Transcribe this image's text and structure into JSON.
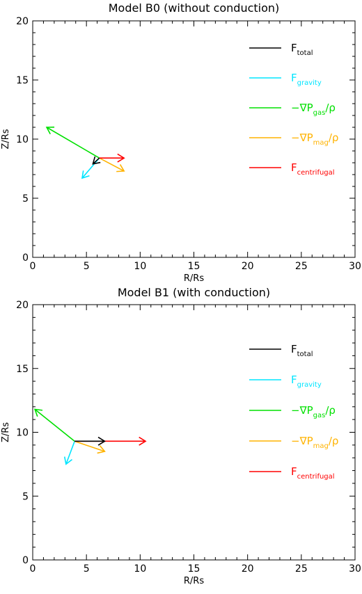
{
  "chart_data": [
    {
      "type": "vector-field",
      "title": "Model B0 (without conduction)",
      "xlabel": "R/Rs",
      "ylabel": "Z/Rs",
      "xlim": [
        0,
        30
      ],
      "ylim": [
        0,
        20
      ],
      "xticks": [
        "0",
        "5",
        "10",
        "15",
        "20",
        "25",
        "30"
      ],
      "yticks": [
        "0",
        "5",
        "10",
        "15",
        "20"
      ],
      "legend_position": "top-right",
      "origin": [
        6.2,
        8.4
      ],
      "series": [
        {
          "name": "F",
          "sub": "total",
          "prefix": "",
          "suffix": "",
          "color": "#000000",
          "vector": [
            -0.6,
            -0.5
          ]
        },
        {
          "name": "F",
          "sub": "gravity",
          "prefix": "",
          "suffix": "",
          "color": "#00e5ff",
          "vector": [
            -1.6,
            -1.7
          ]
        },
        {
          "name": "P",
          "sub": "gas",
          "prefix": "−∇",
          "suffix": "/ρ",
          "color": "#00e000",
          "vector": [
            -4.9,
            2.6
          ]
        },
        {
          "name": "P",
          "sub": "mag",
          "prefix": "−∇",
          "suffix": "/ρ",
          "color": "#ffb300",
          "vector": [
            2.3,
            -1.1
          ]
        },
        {
          "name": "F",
          "sub": "centrifugal",
          "prefix": "",
          "suffix": "",
          "color": "#ff0000",
          "vector": [
            2.3,
            0.0
          ]
        }
      ]
    },
    {
      "type": "vector-field",
      "title": "Model B1 (with conduction)",
      "xlabel": "R/Rs",
      "ylabel": "Z/Rs",
      "xlim": [
        0,
        30
      ],
      "ylim": [
        0,
        20
      ],
      "xticks": [
        "0",
        "5",
        "10",
        "15",
        "20",
        "25",
        "30"
      ],
      "yticks": [
        "0",
        "5",
        "10",
        "15",
        "20"
      ],
      "legend_position": "top-right",
      "origin": [
        3.9,
        9.3
      ],
      "series": [
        {
          "name": "F",
          "sub": "total",
          "prefix": "",
          "suffix": "",
          "color": "#000000",
          "vector": [
            2.8,
            0.0
          ]
        },
        {
          "name": "F",
          "sub": "gravity",
          "prefix": "",
          "suffix": "",
          "color": "#00e5ff",
          "vector": [
            -0.8,
            -1.8
          ]
        },
        {
          "name": "P",
          "sub": "gas",
          "prefix": "−∇",
          "suffix": "/ρ",
          "color": "#00e000",
          "vector": [
            -3.7,
            2.5
          ]
        },
        {
          "name": "P",
          "sub": "mag",
          "prefix": "−∇",
          "suffix": "/ρ",
          "color": "#ffb300",
          "vector": [
            2.8,
            -0.8
          ]
        },
        {
          "name": "F",
          "sub": "centrifugal",
          "prefix": "",
          "suffix": "",
          "color": "#ff0000",
          "vector": [
            6.6,
            0.0
          ]
        }
      ]
    }
  ]
}
